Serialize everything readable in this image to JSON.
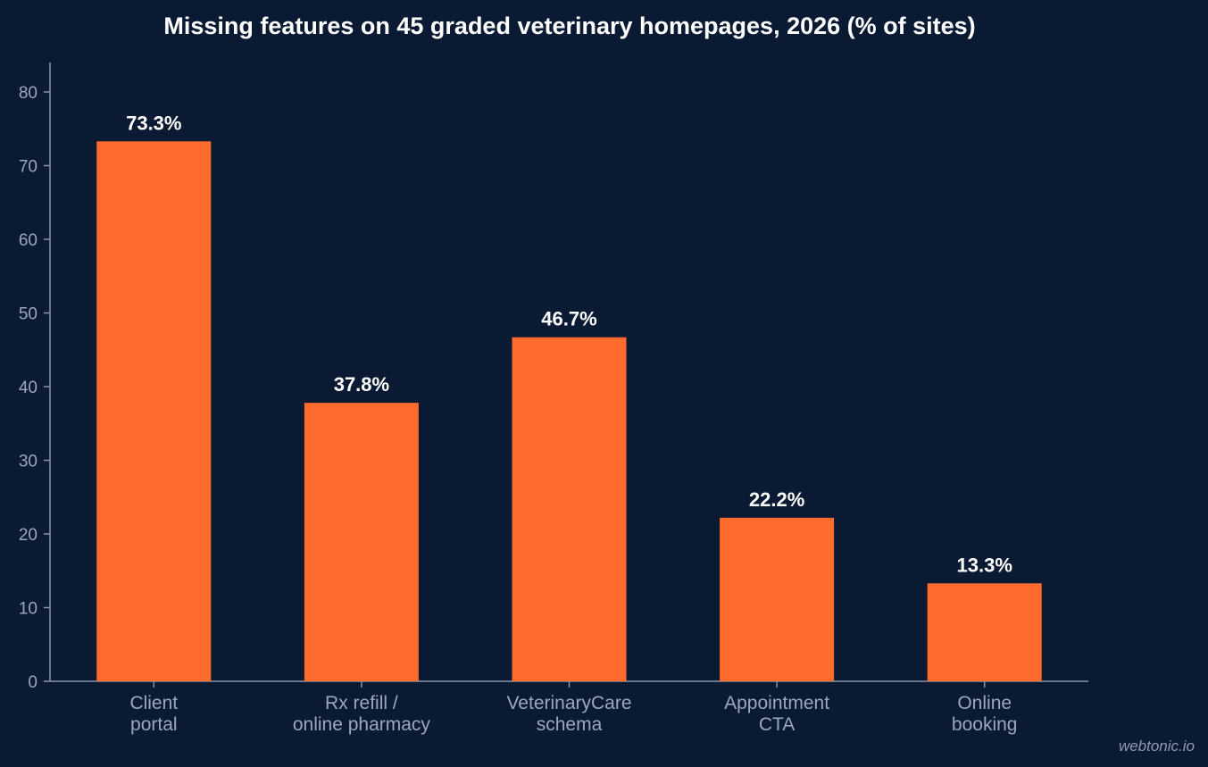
{
  "chart_data": {
    "type": "bar",
    "title": "Missing features on 45 graded veterinary homepages, 2026 (% of sites)",
    "xlabel": "",
    "ylabel": "",
    "categories": [
      [
        "Client",
        "portal"
      ],
      [
        "Rx refill /",
        "online pharmacy"
      ],
      [
        "VeterinaryCare",
        "schema"
      ],
      [
        "Appointment",
        "CTA"
      ],
      [
        "Online",
        "booking"
      ]
    ],
    "values": [
      73.3,
      37.8,
      46.7,
      22.2,
      13.3
    ],
    "data_labels": [
      "73.3%",
      "37.8%",
      "46.7%",
      "22.2%",
      "13.3%"
    ],
    "ylim": [
      0,
      84
    ],
    "yticks": [
      0,
      10,
      20,
      30,
      40,
      50,
      60,
      70,
      80
    ],
    "bar_color": "#ff6b2c",
    "grid": false,
    "legend": "none"
  },
  "watermark": "webtonic.io",
  "colors": {
    "background": "#0b1a33",
    "axis": "#8793a8",
    "tick_text": "#9aa7bd",
    "label_text": "#ffffff"
  }
}
